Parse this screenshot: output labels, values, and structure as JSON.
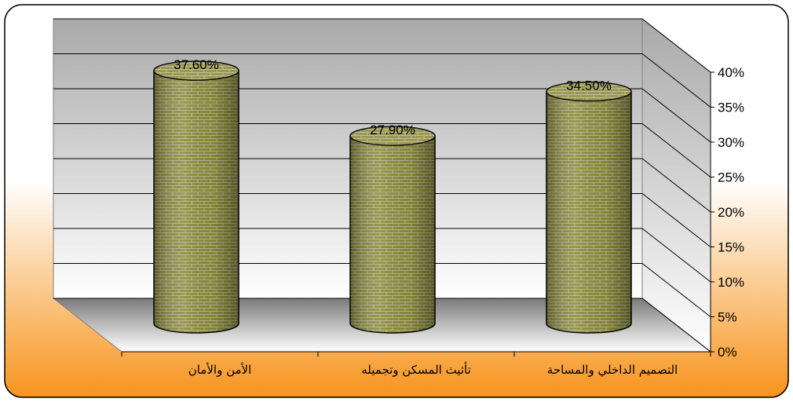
{
  "chart_data": {
    "type": "bar",
    "bar_shape": "cylinder",
    "categories": [
      "الأمن والأمان",
      "تأثيث المسكن وتجميله",
      "التصميم الداخلي والمساحة"
    ],
    "values": [
      37.6,
      27.9,
      34.5
    ],
    "value_labels": [
      "37.60%",
      "27.90%",
      "34.50%"
    ],
    "ylim": [
      0,
      40
    ],
    "yticks": [
      "0%",
      "5%",
      "10%",
      "15%",
      "20%",
      "25%",
      "30%",
      "35%",
      "40%"
    ],
    "y_axis_side": "right",
    "grid": true,
    "legend": "none",
    "colors": {
      "background_top": "#ffffff",
      "background_bottom": "#f7941d",
      "wall_top": "#a9a9a9",
      "wall_bottom": "#ffffff",
      "bar_base": "#8b8b3c",
      "brick_mortar": "#b9b58a",
      "outline": "#000000"
    }
  }
}
